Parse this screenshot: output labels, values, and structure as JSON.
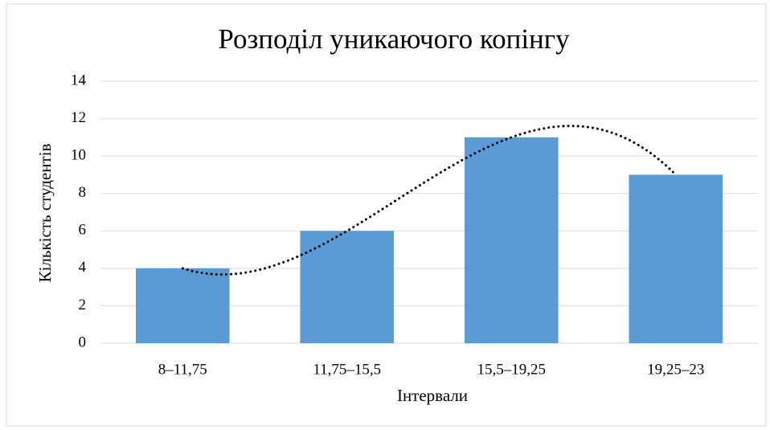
{
  "chart_data": {
    "type": "bar",
    "title": "Розподіл уникаючого копінгу",
    "categories": [
      "8–11,75",
      "11,75–15,5",
      "15,5–19,25",
      "19,25–23"
    ],
    "values": [
      4,
      6,
      11,
      9
    ],
    "color": "#5b9bd5",
    "xlabel": "Інтервали",
    "ylabel": "Кількість студентів",
    "ylim": [
      0,
      14
    ],
    "yticks": [
      0,
      2,
      4,
      6,
      8,
      10,
      12,
      14
    ],
    "grid": true,
    "trendline": "polynomial"
  }
}
